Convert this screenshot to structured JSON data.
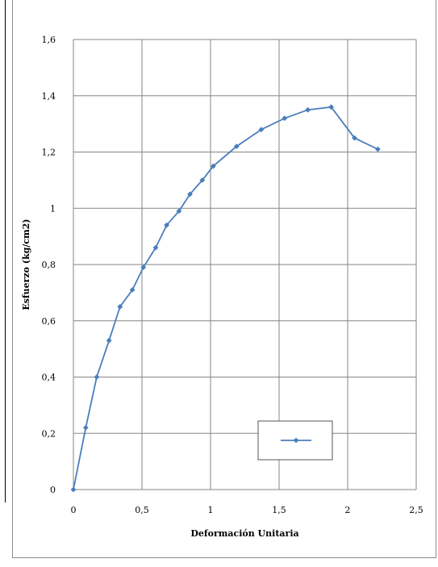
{
  "chart_data": {
    "type": "line",
    "title": "",
    "xlabel": "Deformación Unitaria",
    "ylabel": "Esfuerzo (kg/cm2)",
    "xlim": [
      0,
      2.5
    ],
    "ylim": [
      0,
      1.6
    ],
    "x_ticks": [
      "0",
      "0,5",
      "1",
      "1,5",
      "2",
      "2,5"
    ],
    "y_ticks": [
      "0",
      "0,2",
      "0,4",
      "0,6",
      "0,8",
      "1",
      "1,2",
      "1,4",
      "1,6"
    ],
    "grid": true,
    "legend": {
      "position": "bottom-right",
      "entries": [
        ""
      ]
    },
    "series": [
      {
        "color": "#4a7ebb",
        "marker": "diamond",
        "x": [
          0,
          0.09,
          0.17,
          0.26,
          0.34,
          0.43,
          0.51,
          0.6,
          0.68,
          0.77,
          0.85,
          0.94,
          1.02,
          1.19,
          1.37,
          1.54,
          1.71,
          1.88,
          2.05,
          2.22
        ],
        "y": [
          0,
          0.22,
          0.4,
          0.53,
          0.65,
          0.71,
          0.79,
          0.86,
          0.94,
          0.99,
          1.05,
          1.1,
          1.15,
          1.22,
          1.28,
          1.32,
          1.35,
          1.36,
          1.25,
          1.21
        ]
      }
    ]
  }
}
